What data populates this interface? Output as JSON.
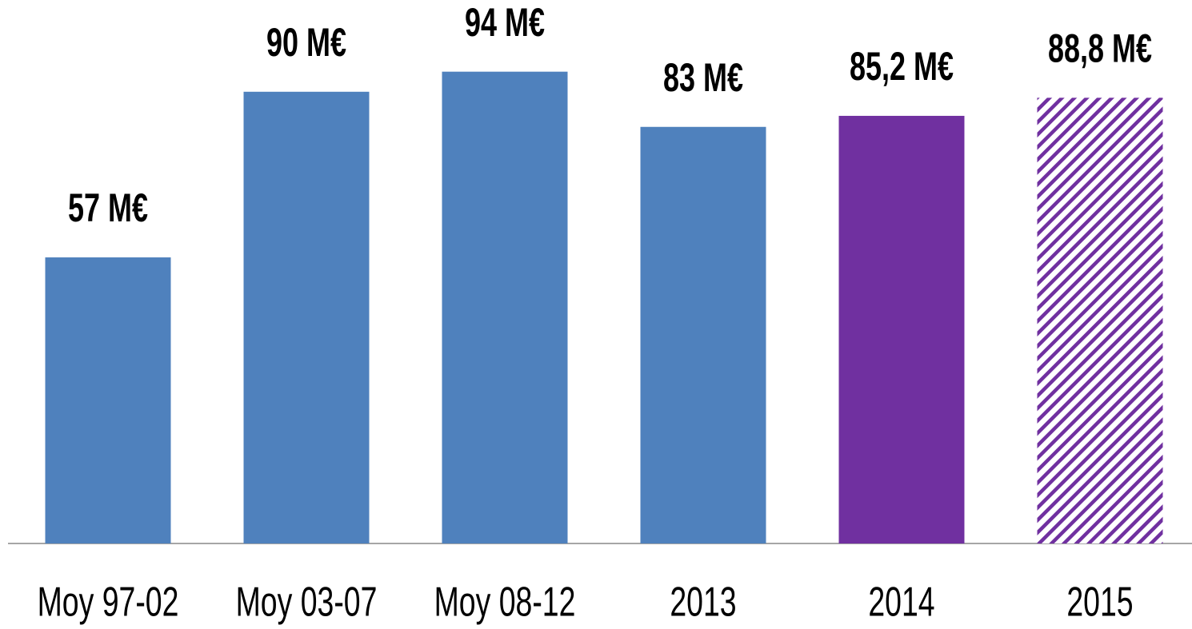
{
  "chart_data": {
    "type": "bar",
    "categories": [
      "Moy 97-02",
      "Moy 03-07",
      "Moy 08-12",
      "2013",
      "2014",
      "2015"
    ],
    "values": [
      57,
      90,
      94,
      83,
      85.2,
      88.8
    ],
    "value_labels": [
      "57 M€",
      "90 M€",
      "94 M€",
      "83 M€",
      "85,2 M€",
      "88,8 M€"
    ],
    "colors": [
      "#4f81bd",
      "#4f81bd",
      "#4f81bd",
      "#4f81bd",
      "#7030a0",
      "#7030a0"
    ],
    "patterns": [
      "solid",
      "solid",
      "solid",
      "solid",
      "solid",
      "hatch"
    ],
    "grid": false
  }
}
